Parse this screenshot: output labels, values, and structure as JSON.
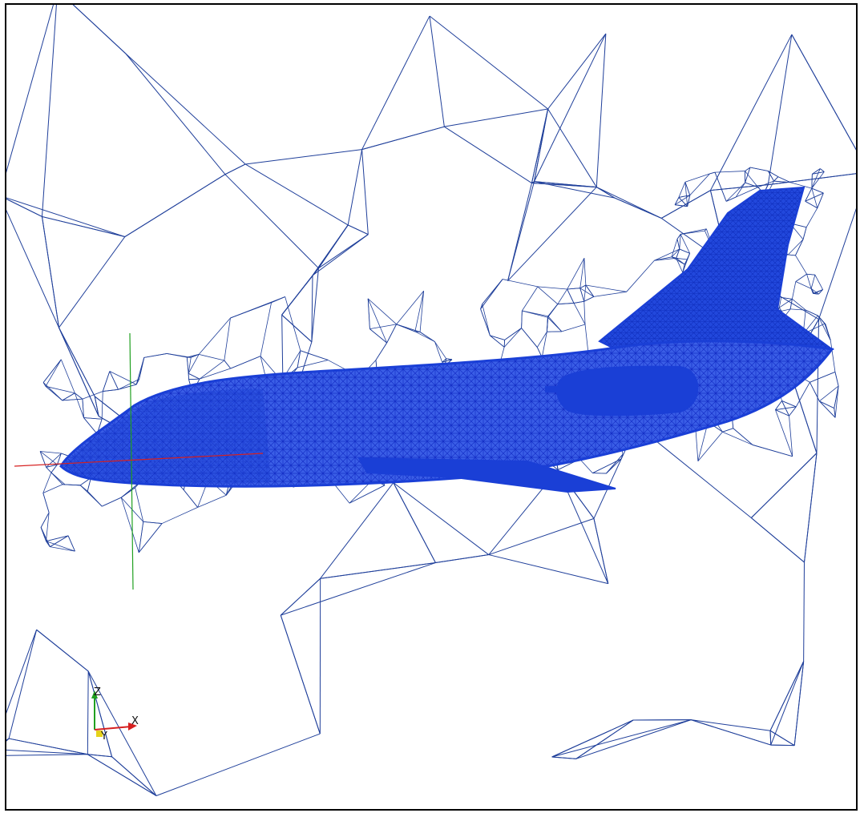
{
  "viewport": {
    "colors": {
      "background": "#ffffff",
      "mesh_line": "#1f3f9a",
      "surface_mesh": "#1a3fd6",
      "surface_dense": "#1537d8",
      "x_axis": "#d62020",
      "y_axis": "#e6d21a",
      "z_axis": "#20a020",
      "frame": "#000000"
    },
    "orientation_widget": {
      "z_label": "Z",
      "x_label": "X",
      "y_label": "Y"
    }
  }
}
